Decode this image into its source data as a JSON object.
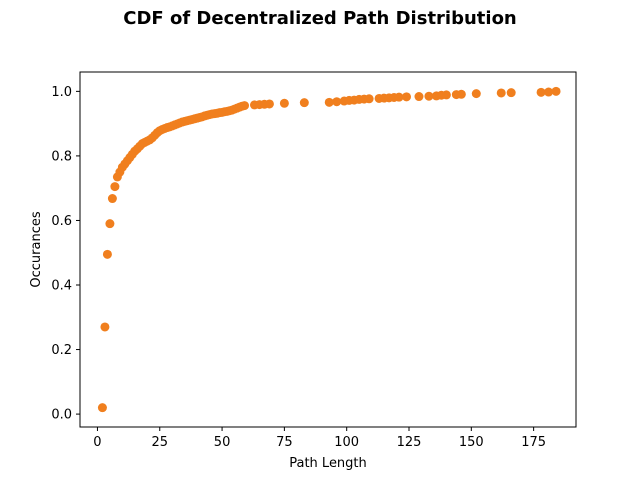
{
  "chart_data": {
    "type": "scatter",
    "title": "CDF of Decentralized Path Distribution",
    "xlabel": "Path Length",
    "ylabel": "Occurances",
    "xlim": [
      -7,
      192
    ],
    "ylim": [
      -0.04,
      1.06
    ],
    "xticks": [
      0,
      25,
      50,
      75,
      100,
      125,
      150,
      175
    ],
    "xtick_labels": [
      "0",
      "25",
      "50",
      "75",
      "100",
      "125",
      "150",
      "175"
    ],
    "yticks": [
      0.0,
      0.2,
      0.4,
      0.6,
      0.8,
      1.0
    ],
    "ytick_labels": [
      "0.0",
      "0.2",
      "0.4",
      "0.6",
      "0.8",
      "1.0"
    ],
    "grid": false,
    "legend": "none",
    "marker_color": "#f07f1e",
    "series": [
      {
        "points": [
          [
            2,
            0.02
          ],
          [
            3,
            0.27
          ],
          [
            4,
            0.495
          ],
          [
            5,
            0.59
          ],
          [
            6,
            0.668
          ],
          [
            7,
            0.705
          ],
          [
            8,
            0.735
          ],
          [
            9,
            0.75
          ],
          [
            10,
            0.765
          ],
          [
            11,
            0.775
          ],
          [
            12,
            0.785
          ],
          [
            13,
            0.795
          ],
          [
            14,
            0.805
          ],
          [
            15,
            0.815
          ],
          [
            16,
            0.822
          ],
          [
            17,
            0.83
          ],
          [
            18,
            0.838
          ],
          [
            19,
            0.842
          ],
          [
            20,
            0.846
          ],
          [
            21,
            0.85
          ],
          [
            22,
            0.856
          ],
          [
            23,
            0.864
          ],
          [
            24,
            0.872
          ],
          [
            25,
            0.878
          ],
          [
            26,
            0.882
          ],
          [
            27,
            0.885
          ],
          [
            28,
            0.888
          ],
          [
            29,
            0.89
          ],
          [
            30,
            0.893
          ],
          [
            31,
            0.896
          ],
          [
            32,
            0.899
          ],
          [
            33,
            0.902
          ],
          [
            34,
            0.905
          ],
          [
            35,
            0.907
          ],
          [
            36,
            0.909
          ],
          [
            37,
            0.911
          ],
          [
            38,
            0.913
          ],
          [
            39,
            0.915
          ],
          [
            40,
            0.917
          ],
          [
            41,
            0.919
          ],
          [
            42,
            0.921
          ],
          [
            43,
            0.924
          ],
          [
            44,
            0.926
          ],
          [
            45,
            0.928
          ],
          [
            46,
            0.93
          ],
          [
            47,
            0.931
          ],
          [
            48,
            0.932
          ],
          [
            49,
            0.934
          ],
          [
            50,
            0.935
          ],
          [
            51,
            0.937
          ],
          [
            52,
            0.938
          ],
          [
            53,
            0.94
          ],
          [
            54,
            0.942
          ],
          [
            55,
            0.945
          ],
          [
            56,
            0.948
          ],
          [
            57,
            0.951
          ],
          [
            58,
            0.954
          ],
          [
            59,
            0.956
          ],
          [
            63,
            0.958
          ],
          [
            65,
            0.959
          ],
          [
            67,
            0.96
          ],
          [
            69,
            0.961
          ],
          [
            75,
            0.963
          ],
          [
            83,
            0.965
          ],
          [
            93,
            0.966
          ],
          [
            96,
            0.968
          ],
          [
            99,
            0.97
          ],
          [
            101,
            0.972
          ],
          [
            103,
            0.973
          ],
          [
            105,
            0.975
          ],
          [
            107,
            0.976
          ],
          [
            109,
            0.977
          ],
          [
            113,
            0.978
          ],
          [
            115,
            0.979
          ],
          [
            117,
            0.98
          ],
          [
            119,
            0.981
          ],
          [
            121,
            0.982
          ],
          [
            124,
            0.983
          ],
          [
            129,
            0.984
          ],
          [
            133,
            0.985
          ],
          [
            136,
            0.986
          ],
          [
            138,
            0.988
          ],
          [
            140,
            0.989
          ],
          [
            144,
            0.99
          ],
          [
            146,
            0.991
          ],
          [
            152,
            0.993
          ],
          [
            162,
            0.995
          ],
          [
            166,
            0.996
          ],
          [
            178,
            0.997
          ],
          [
            181,
            0.998
          ],
          [
            184,
            1.0
          ]
        ]
      }
    ]
  }
}
